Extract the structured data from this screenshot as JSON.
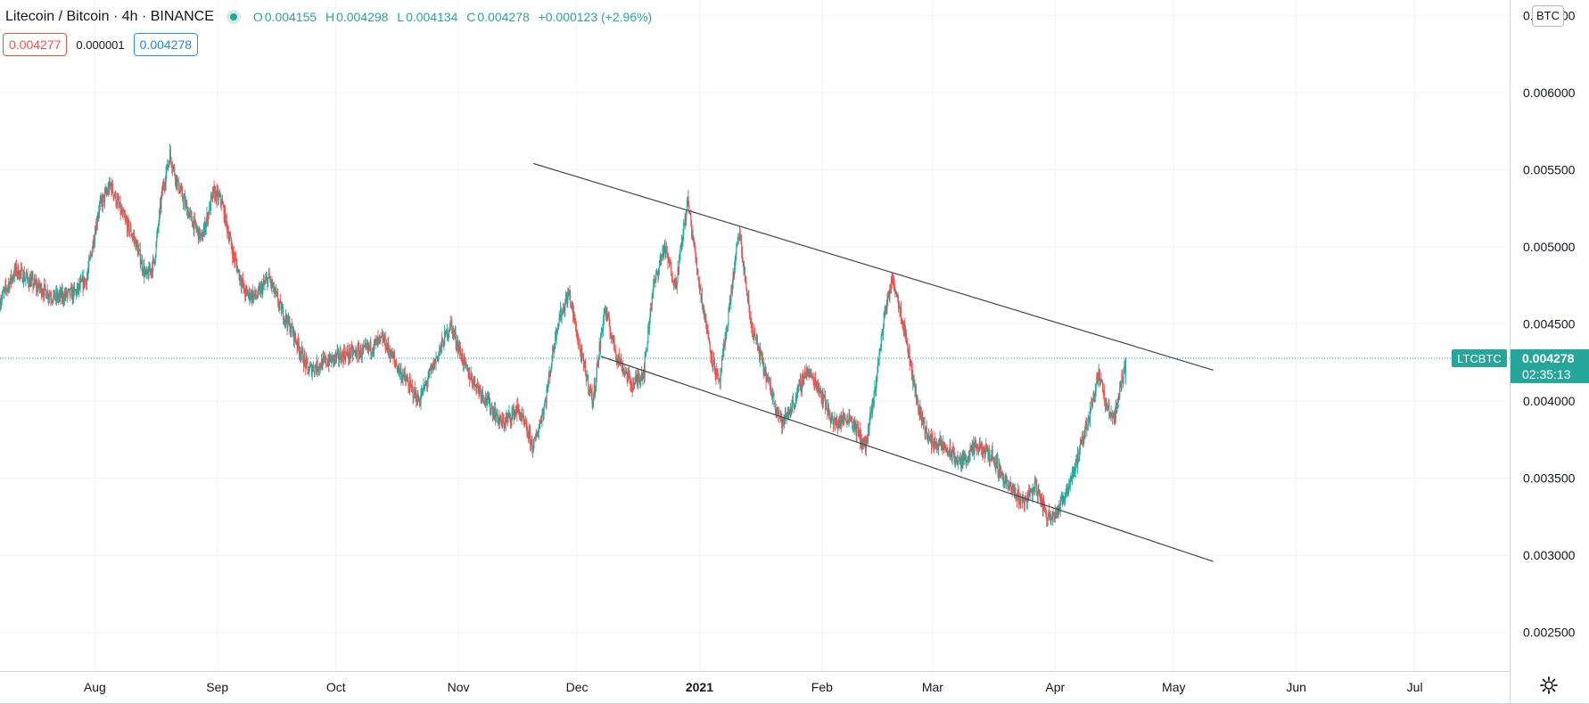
{
  "legend": {
    "symbol_title": "Litecoin / Bitcoin · 4h · BINANCE",
    "open_label": "O",
    "open": "0.004155",
    "high_label": "H",
    "high": "0.004298",
    "low_label": "L",
    "low": "0.004134",
    "close_label": "C",
    "close": "0.004278",
    "change": "+0.000123 (+2.96%)"
  },
  "quotes": {
    "bid": "0.004277",
    "spread": "0.000001",
    "ask": "0.004278"
  },
  "currency_badge": "BTC",
  "price_label": {
    "symbol": "LTCBTC",
    "price": "0.004278",
    "countdown": "02:35:13"
  },
  "colors": {
    "up": "#26a69a",
    "down": "#ef5350",
    "grid": "#f0f3fa",
    "axis_text": "#131722",
    "trendline": "#434651"
  },
  "icons": {
    "settings": "gear-icon",
    "status": "market-open-dot-icon"
  },
  "chart_data": {
    "type": "candlestick",
    "title": "Litecoin / Bitcoin · 4h · BINANCE",
    "y_ticks": [
      "0.006500",
      "0.006000",
      "0.005500",
      "0.005000",
      "0.004500",
      "0.004000",
      "0.003500",
      "0.003000",
      "0.002500"
    ],
    "ylim": [
      0.00225,
      0.0066
    ],
    "x_ticks": [
      "Aug",
      "Sep",
      "Oct",
      "Nov",
      "Dec",
      "2021",
      "Feb",
      "Mar",
      "Apr",
      "May",
      "Jun",
      "Jul"
    ],
    "x_tick_dates": [
      "2020-08-01",
      "2020-09-01",
      "2020-10-01",
      "2020-11-01",
      "2020-12-01",
      "2021-01-01",
      "2021-02-01",
      "2021-03-01",
      "2021-04-01",
      "2021-05-01",
      "2021-06-01",
      "2021-07-01"
    ],
    "xlim": [
      "2020-07-08",
      "2021-07-25"
    ],
    "last_price": 0.004278,
    "grid": true,
    "price_path": [
      [
        "2020-07-08",
        0.00465
      ],
      [
        "2020-07-12",
        0.00485
      ],
      [
        "2020-07-17",
        0.00475
      ],
      [
        "2020-07-22",
        0.00467
      ],
      [
        "2020-07-27",
        0.0047
      ],
      [
        "2020-07-30",
        0.0048
      ],
      [
        "2020-08-02",
        0.00525
      ],
      [
        "2020-08-05",
        0.0054
      ],
      [
        "2020-08-08",
        0.0052
      ],
      [
        "2020-08-11",
        0.00505
      ],
      [
        "2020-08-14",
        0.0048
      ],
      [
        "2020-08-16",
        0.0049
      ],
      [
        "2020-08-18",
        0.00535
      ],
      [
        "2020-08-20",
        0.0056
      ],
      [
        "2020-08-22",
        0.0054
      ],
      [
        "2020-08-25",
        0.0052
      ],
      [
        "2020-08-28",
        0.00505
      ],
      [
        "2020-08-31",
        0.00535
      ],
      [
        "2020-09-02",
        0.0053
      ],
      [
        "2020-09-05",
        0.00495
      ],
      [
        "2020-09-08",
        0.0047
      ],
      [
        "2020-09-11",
        0.00468
      ],
      [
        "2020-09-14",
        0.0048
      ],
      [
        "2020-09-17",
        0.0046
      ],
      [
        "2020-09-20",
        0.00445
      ],
      [
        "2020-09-24",
        0.0042
      ],
      [
        "2020-09-28",
        0.00425
      ],
      [
        "2020-10-03",
        0.0043
      ],
      [
        "2020-10-08",
        0.00432
      ],
      [
        "2020-10-13",
        0.0044
      ],
      [
        "2020-10-17",
        0.0042
      ],
      [
        "2020-10-22",
        0.004
      ],
      [
        "2020-10-26",
        0.00425
      ],
      [
        "2020-10-30",
        0.0045
      ],
      [
        "2020-11-03",
        0.0042
      ],
      [
        "2020-11-07",
        0.00405
      ],
      [
        "2020-11-12",
        0.00385
      ],
      [
        "2020-11-16",
        0.00395
      ],
      [
        "2020-11-20",
        0.0037
      ],
      [
        "2020-11-23",
        0.004
      ],
      [
        "2020-11-26",
        0.0045
      ],
      [
        "2020-11-29",
        0.0047
      ],
      [
        "2020-12-02",
        0.0043
      ],
      [
        "2020-12-05",
        0.004
      ],
      [
        "2020-12-08",
        0.0046
      ],
      [
        "2020-12-11",
        0.0043
      ],
      [
        "2020-12-15",
        0.0041
      ],
      [
        "2020-12-18",
        0.0042
      ],
      [
        "2020-12-20",
        0.0047
      ],
      [
        "2020-12-23",
        0.005
      ],
      [
        "2020-12-26",
        0.00475
      ],
      [
        "2020-12-29",
        0.0053
      ],
      [
        "2021-01-01",
        0.00475
      ],
      [
        "2021-01-04",
        0.0043
      ],
      [
        "2021-01-06",
        0.0041
      ],
      [
        "2021-01-09",
        0.0047
      ],
      [
        "2021-01-11",
        0.0051
      ],
      [
        "2021-01-14",
        0.0045
      ],
      [
        "2021-01-18",
        0.00415
      ],
      [
        "2021-01-22",
        0.00385
      ],
      [
        "2021-01-25",
        0.004
      ],
      [
        "2021-01-28",
        0.0042
      ],
      [
        "2021-01-31",
        0.0041
      ],
      [
        "2021-02-04",
        0.00385
      ],
      [
        "2021-02-08",
        0.0039
      ],
      [
        "2021-02-12",
        0.0037
      ],
      [
        "2021-02-14",
        0.004
      ],
      [
        "2021-02-17",
        0.0046
      ],
      [
        "2021-02-19",
        0.0048
      ],
      [
        "2021-02-22",
        0.00445
      ],
      [
        "2021-02-25",
        0.004
      ],
      [
        "2021-02-28",
        0.00375
      ],
      [
        "2021-03-04",
        0.0037
      ],
      [
        "2021-03-08",
        0.0036
      ],
      [
        "2021-03-12",
        0.0037
      ],
      [
        "2021-03-16",
        0.00365
      ],
      [
        "2021-03-20",
        0.00345
      ],
      [
        "2021-03-24",
        0.00335
      ],
      [
        "2021-03-27",
        0.00345
      ],
      [
        "2021-03-30",
        0.00325
      ],
      [
        "2021-04-02",
        0.0033
      ],
      [
        "2021-04-05",
        0.0035
      ],
      [
        "2021-04-07",
        0.00365
      ],
      [
        "2021-04-10",
        0.00395
      ],
      [
        "2021-04-12",
        0.0042
      ],
      [
        "2021-04-14",
        0.00395
      ],
      [
        "2021-04-16",
        0.0039
      ],
      [
        "2021-04-18",
        0.00415
      ],
      [
        "2021-04-19",
        0.004278
      ]
    ],
    "trendlines": [
      {
        "start": [
          "2020-11-20",
          0.00554
        ],
        "end": [
          "2021-05-11",
          0.0042
        ]
      },
      {
        "start": [
          "2020-12-07",
          0.00429
        ],
        "end": [
          "2021-05-11",
          0.00296
        ]
      }
    ]
  }
}
